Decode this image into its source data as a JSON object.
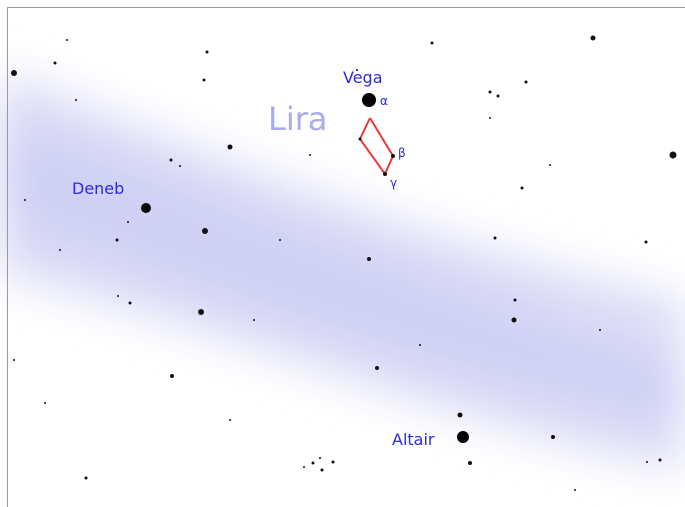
{
  "constellation": "Lira",
  "stars": [
    {
      "name": "Vega"
    },
    {
      "name": "Deneb"
    },
    {
      "name": "Altair"
    }
  ],
  "greek": [
    "α",
    "β",
    "γ"
  ]
}
